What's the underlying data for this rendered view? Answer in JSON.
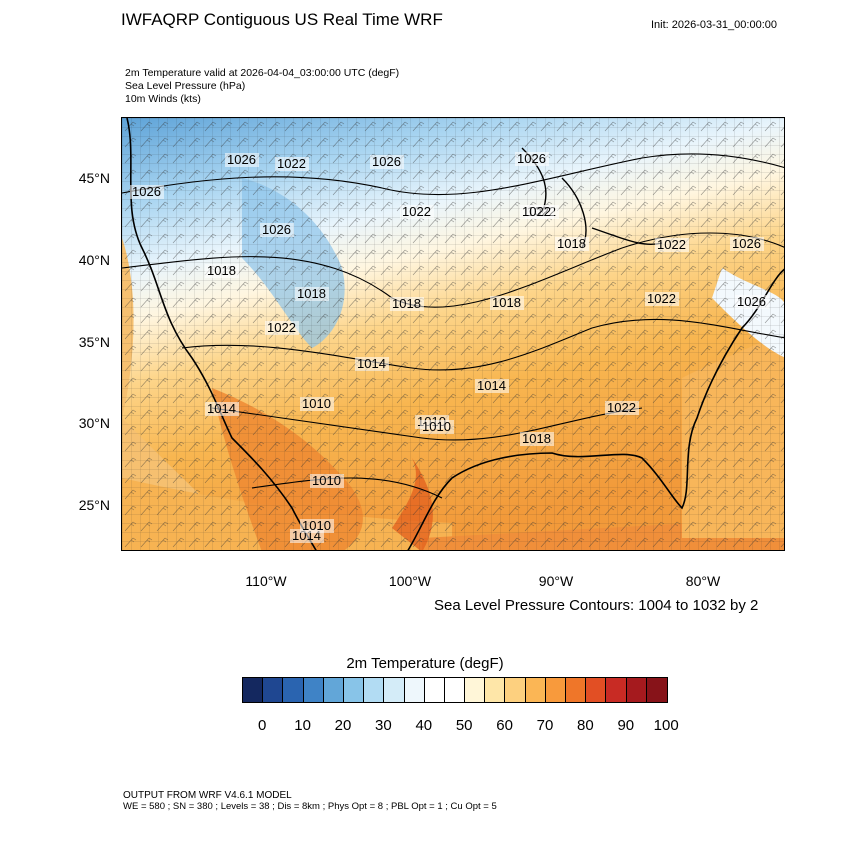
{
  "header": {
    "title": "IWFAQRP Contiguous US Real Time WRF",
    "init": "Init: 2026-03-31_00:00:00",
    "fields": [
      "2m Temperature valid at 2026-04-04_03:00:00 UTC   (degF)",
      "Sea Level Pressure   (hPa)",
      "10m Winds   (kts)"
    ]
  },
  "map": {
    "lat_labels": [
      "45°N",
      "40°N",
      "35°N",
      "30°N",
      "25°N"
    ],
    "lon_labels": [
      "110°W",
      "100°W",
      "90°W",
      "80°W"
    ],
    "pressure_labels": [
      "1026",
      "1022",
      "1026",
      "1026",
      "1026",
      "1022",
      "1022",
      "1018",
      "1022",
      "1026",
      "1018",
      "1026",
      "1018",
      "1018",
      "1022",
      "1014",
      "1014",
      "1010",
      "1010",
      "1010",
      "1014",
      "1018",
      "1022",
      "1014",
      "1010",
      "1010",
      "1022",
      "1018",
      "1026",
      "1022"
    ],
    "colors": {
      "cold": "#9fd0ee",
      "mild": "#fff6e0",
      "warm": "#f8b650",
      "hot": "#e46a1e",
      "land_outline": "#000000"
    }
  },
  "contour_note": "Sea Level Pressure Contours: 1004 to 1032 by 2",
  "colorbar": {
    "title": "2m Temperature  (degF)",
    "colors": [
      "#14285f",
      "#1f4791",
      "#2a64b0",
      "#3f83c6",
      "#62a6d8",
      "#88c4e8",
      "#b2dcf3",
      "#d4ecf8",
      "#eef7fc",
      "#ffffff",
      "#ffffff",
      "#fff6d8",
      "#fee6a8",
      "#fdd07f",
      "#fbb655",
      "#f89a3c",
      "#ef7629",
      "#e24f24",
      "#c82b24",
      "#a51a1e",
      "#871319"
    ],
    "tick_labels": [
      "0",
      "10",
      "20",
      "30",
      "40",
      "50",
      "60",
      "70",
      "80",
      "90",
      "100"
    ]
  },
  "footer": {
    "line1": "OUTPUT FROM WRF V4.6.1 MODEL",
    "line2": "WE = 580 ; SN = 380 ; Levels = 38 ; Dis = 8km ; Phys Opt = 8 ; PBL Opt = 1 ; Cu Opt = 5"
  }
}
